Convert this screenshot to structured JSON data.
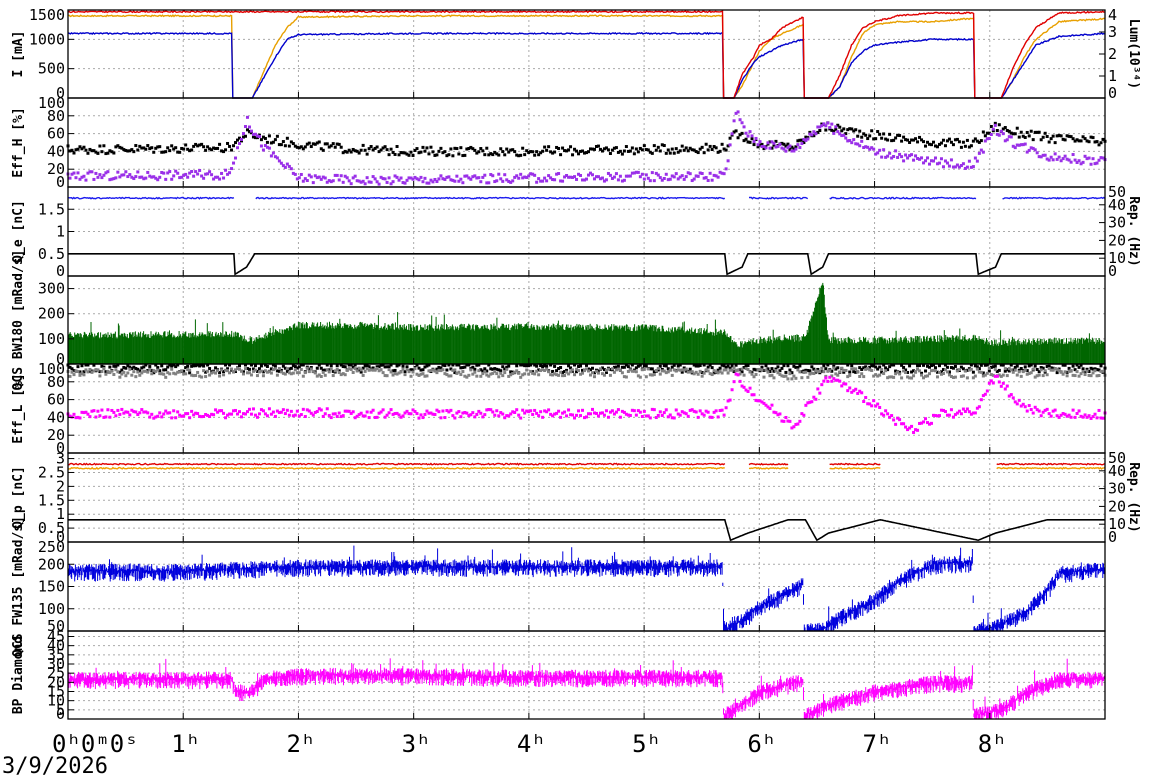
{
  "date": "3/9/2026",
  "chart_data": [
    {
      "type": "line",
      "ylabel": "I [mA]",
      "ylabel_right": "Lum(10³⁴)",
      "ylim": [
        0,
        1500
      ],
      "yticks": [
        0,
        500,
        1000,
        1500
      ],
      "ylim_right": [
        0,
        4
      ],
      "yticks_right": [
        0,
        1,
        2,
        3,
        4
      ],
      "x": [
        0.0,
        1.42,
        1.43,
        1.6,
        1.8,
        1.9,
        2.0,
        3.0,
        4.0,
        5.0,
        5.68,
        5.69,
        5.78,
        5.85,
        5.95,
        6.0,
        6.1,
        6.2,
        6.38,
        6.39,
        6.48,
        6.6,
        6.7,
        6.8,
        6.9,
        7.0,
        7.2,
        7.5,
        7.8,
        7.86,
        7.87,
        8.0,
        8.1,
        8.2,
        8.3,
        8.4,
        8.6,
        9.0
      ],
      "series": [
        {
          "color": "#e8a000",
          "values": [
            1400,
            1400,
            0,
            0,
            900,
            1200,
            1380,
            1400,
            1400,
            1400,
            1400,
            0,
            0,
            200,
            600,
            800,
            1000,
            1100,
            1250,
            0,
            0,
            0,
            200,
            700,
            1100,
            1250,
            1300,
            1300,
            1350,
            1350,
            0,
            0,
            0,
            300,
            700,
            1000,
            1300,
            1350
          ]
        },
        {
          "color": "#0000cc",
          "values": [
            1100,
            1100,
            0,
            0,
            700,
            1000,
            1080,
            1100,
            1100,
            1100,
            1100,
            0,
            0,
            300,
            600,
            700,
            800,
            900,
            1000,
            0,
            0,
            0,
            200,
            600,
            800,
            900,
            950,
            1000,
            1000,
            1000,
            0,
            0,
            0,
            300,
            600,
            900,
            1050,
            1100
          ]
        },
        {
          "color": "#e00000",
          "values": [
            1470,
            1470,
            1470,
            1470,
            1470,
            1470,
            1470,
            1470,
            1470,
            1470,
            1470,
            0,
            0,
            400,
            700,
            900,
            1000,
            1200,
            1380,
            0,
            0,
            0,
            400,
            900,
            1200,
            1300,
            1400,
            1450,
            1450,
            1450,
            0,
            0,
            0,
            500,
            900,
            1200,
            1450,
            1470
          ]
        }
      ]
    },
    {
      "type": "scatter",
      "ylabel": "Eff_H [%]",
      "ylim": [
        0,
        100
      ],
      "yticks": [
        0,
        20,
        40,
        60,
        80,
        100
      ],
      "x": [
        0.0,
        1.4,
        1.55,
        1.7,
        2.0,
        2.5,
        3.0,
        4.0,
        5.0,
        5.7,
        5.8,
        5.9,
        6.0,
        6.3,
        6.55,
        6.7,
        7.0,
        7.5,
        7.85,
        8.05,
        8.2,
        8.5,
        9.0
      ],
      "series": [
        {
          "color": "#000000",
          "values": [
            42,
            44,
            60,
            55,
            48,
            42,
            40,
            40,
            42,
            44,
            60,
            55,
            48,
            45,
            68,
            65,
            58,
            50,
            48,
            68,
            62,
            55,
            50
          ]
        },
        {
          "color": "#9a30e8",
          "values": [
            12,
            14,
            75,
            45,
            10,
            8,
            8,
            10,
            12,
            12,
            85,
            60,
            50,
            42,
            72,
            60,
            40,
            28,
            25,
            65,
            50,
            35,
            28
          ]
        }
      ]
    },
    {
      "type": "line",
      "ylabel": "Q_e [nC]",
      "ylabel_right": "Rep. (Hz)",
      "ylim": [
        0,
        2
      ],
      "yticks": [
        0,
        0.5,
        1,
        1.5
      ],
      "ylim_right": [
        0,
        50
      ],
      "yticks_right": [
        0,
        10,
        20,
        30,
        40,
        50
      ],
      "x": [
        0.0,
        1.44,
        1.45,
        1.55,
        1.62,
        5.7,
        5.72,
        5.85,
        5.9,
        6.42,
        6.45,
        6.55,
        6.6,
        7.88,
        7.9,
        8.05,
        8.1,
        9.0
      ],
      "series": [
        {
          "color": "#1a1aee",
          "values": [
            1.75,
            1.75,
            null,
            null,
            1.75,
            1.75,
            null,
            null,
            1.75,
            1.75,
            null,
            null,
            1.75,
            1.75,
            null,
            null,
            1.75,
            1.75
          ]
        },
        {
          "color": "#000000",
          "axis": "right",
          "values": [
            12.5,
            12.5,
            1,
            5,
            12.5,
            12.5,
            1,
            5,
            12.5,
            12.5,
            1,
            5,
            12.5,
            12.5,
            1,
            5,
            12.5,
            12.5
          ]
        }
      ]
    },
    {
      "type": "area",
      "ylabel": "QCS BW180 [mRad/s]",
      "ylim": [
        0,
        350
      ],
      "yticks": [
        0,
        100,
        200,
        300
      ],
      "x": [
        0.0,
        1.42,
        1.6,
        2.0,
        2.5,
        3.0,
        4.0,
        5.0,
        5.7,
        5.8,
        6.0,
        6.4,
        6.55,
        6.6,
        7.0,
        7.88,
        8.0,
        9.0
      ],
      "series": [
        {
          "color": "#006600",
          "values": [
            100,
            105,
            80,
            140,
            140,
            130,
            135,
            130,
            110,
            60,
            80,
            90,
            320,
            80,
            80,
            90,
            70,
            80
          ]
        }
      ]
    },
    {
      "type": "scatter",
      "ylabel": "Eff_L [%]",
      "ylim": [
        0,
        100
      ],
      "yticks": [
        0,
        20,
        40,
        60,
        80,
        100
      ],
      "x": [
        0.0,
        1.0,
        2.0,
        3.0,
        4.0,
        5.0,
        5.7,
        5.8,
        6.0,
        6.3,
        6.6,
        7.0,
        7.3,
        7.6,
        7.85,
        8.05,
        8.3,
        8.6,
        9.0
      ],
      "series": [
        {
          "color": "#000000",
          "values": [
            95,
            95,
            96,
            95,
            95,
            95,
            95,
            96,
            94,
            93,
            95,
            95,
            94,
            95,
            94,
            96,
            95,
            95,
            94
          ]
        },
        {
          "color": "#808080",
          "values": [
            90,
            90,
            91,
            90,
            90,
            90,
            90,
            92,
            89,
            88,
            91,
            90,
            89,
            90,
            89,
            91,
            90,
            90,
            89
          ]
        },
        {
          "color": "#ff00ff",
          "values": [
            44,
            44,
            45,
            44,
            44,
            44,
            44,
            85,
            60,
            30,
            85,
            55,
            25,
            45,
            45,
            85,
            50,
            43,
            44
          ]
        }
      ]
    },
    {
      "type": "line",
      "ylabel": "Q_p [nC]",
      "ylabel_right": "Rep. (Hz)",
      "ylim": [
        0,
        3.2
      ],
      "yticks": [
        0,
        0.5,
        1,
        1.5,
        2,
        2.5,
        3
      ],
      "ylim_right": [
        0,
        50
      ],
      "yticks_right": [
        0,
        10,
        20,
        30,
        40,
        50
      ],
      "x": [
        0.0,
        5.7,
        5.75,
        5.9,
        6.25,
        6.4,
        6.5,
        6.6,
        7.05,
        7.9,
        8.05,
        8.5,
        9.0
      ],
      "series": [
        {
          "color": "#e00000",
          "values": [
            2.8,
            2.8,
            null,
            2.8,
            2.8,
            null,
            null,
            2.8,
            2.8,
            null,
            2.8,
            2.8,
            2.8
          ]
        },
        {
          "color": "#f0a000",
          "values": [
            2.65,
            2.65,
            null,
            2.65,
            2.65,
            null,
            null,
            2.65,
            2.65,
            null,
            2.65,
            2.65,
            2.65
          ]
        },
        {
          "color": "#000000",
          "axis": "right",
          "values": [
            12.5,
            12.5,
            1,
            5,
            12.5,
            12.5,
            1,
            5,
            12.5,
            1,
            5,
            12.5,
            12.5
          ]
        }
      ]
    },
    {
      "type": "area",
      "ylabel": "QCS FW135 [mRad/s]",
      "ylim": [
        50,
        250
      ],
      "yticks": [
        50,
        100,
        150,
        200,
        250
      ],
      "x": [
        0.0,
        1.0,
        2.0,
        3.0,
        4.0,
        5.0,
        5.68,
        5.69,
        5.85,
        6.0,
        6.2,
        6.38,
        6.39,
        6.55,
        6.7,
        7.0,
        7.2,
        7.5,
        7.85,
        7.86,
        8.05,
        8.3,
        8.5,
        8.6,
        9.0
      ],
      "series": [
        {
          "color": "#0000dd",
          "values": [
            185,
            185,
            195,
            195,
            195,
            195,
            195,
            50,
            75,
            105,
            130,
            155,
            50,
            55,
            80,
            120,
            160,
            200,
            205,
            50,
            60,
            90,
            140,
            180,
            190
          ]
        }
      ]
    },
    {
      "type": "area",
      "ylabel": "BP Diamond",
      "ylim": [
        0,
        48
      ],
      "yticks": [
        0,
        5,
        10,
        15,
        20,
        25,
        30,
        35,
        40,
        45
      ],
      "xticks": [
        "0ʰ0ᵐ0ˢ",
        "1ʰ",
        "2ʰ",
        "3ʰ",
        "4ʰ",
        "5ʰ",
        "6ʰ",
        "7ʰ",
        "8ʰ"
      ],
      "x": [
        0.0,
        1.42,
        1.45,
        1.6,
        1.7,
        2.0,
        3.0,
        4.0,
        5.0,
        5.68,
        5.69,
        5.85,
        6.0,
        6.3,
        6.38,
        6.39,
        6.6,
        7.0,
        7.5,
        7.85,
        7.86,
        8.1,
        8.3,
        8.6,
        9.0
      ],
      "series": [
        {
          "color": "#ff00ff",
          "values": [
            22,
            22,
            15,
            15,
            22,
            24,
            24,
            23,
            23,
            23,
            2,
            8,
            15,
            20,
            20,
            2,
            8,
            15,
            20,
            20,
            2,
            5,
            14,
            22,
            22
          ]
        }
      ]
    }
  ]
}
